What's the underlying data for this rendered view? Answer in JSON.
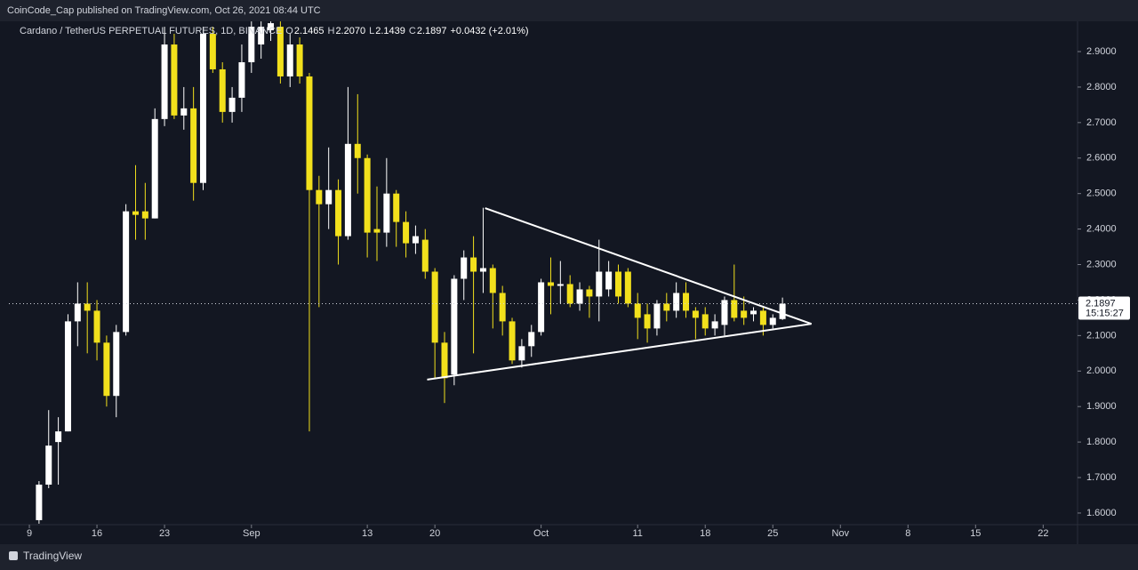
{
  "publisher": "CoinCode_Cap published on TradingView.com, Oct 26, 2021 08:44 UTC",
  "footer": "TradingView",
  "chart_data": {
    "type": "candlestick",
    "title": "Cardano / TetherUS PERPETUAL FUTURES, 1D, BINANCE",
    "ohlc_legend": [
      {
        "label": "O",
        "value": "2.1465"
      },
      {
        "label": "H",
        "value": "2.2070"
      },
      {
        "label": "L",
        "value": "2.1439"
      },
      {
        "label": "C",
        "value": "2.1897"
      }
    ],
    "change": "+0.0432 (+2.01%)",
    "up_color": "#ffffff",
    "down_color": "#f2e01c",
    "x": [
      1,
      2,
      3,
      4,
      5,
      6,
      7,
      8,
      9,
      10,
      11,
      12,
      13,
      14,
      15,
      16,
      17,
      18,
      19,
      20,
      21,
      22,
      23,
      24,
      25,
      26,
      27,
      28,
      29,
      30,
      31,
      32,
      33,
      34,
      35,
      36,
      37,
      38,
      39,
      40,
      41,
      42,
      43,
      44,
      45,
      46,
      47,
      48,
      49,
      50,
      51,
      52,
      53,
      54,
      55,
      56,
      57,
      58,
      59,
      60,
      61,
      62,
      63,
      64,
      65,
      66,
      67,
      68,
      69,
      70,
      71,
      72,
      73,
      74,
      75,
      76,
      77,
      78
    ],
    "open": [
      1.58,
      1.68,
      1.8,
      1.83,
      2.14,
      2.19,
      2.17,
      2.08,
      1.93,
      2.11,
      2.45,
      2.45,
      2.43,
      2.71,
      2.92,
      2.72,
      2.74,
      2.53,
      2.95,
      2.85,
      2.73,
      2.77,
      2.87,
      2.92,
      2.96,
      2.97,
      2.83,
      2.92,
      2.83,
      2.51,
      2.47,
      2.51,
      2.38,
      2.64,
      2.6,
      2.4,
      2.39,
      2.5,
      2.42,
      2.36,
      2.37,
      2.28,
      2.08,
      1.99,
      2.26,
      2.32,
      2.28,
      2.29,
      2.22,
      2.14,
      2.03,
      2.07,
      2.11,
      2.25,
      2.24,
      2.245,
      2.19,
      2.23,
      2.21,
      2.23,
      2.28,
      2.28,
      2.19,
      2.16,
      2.12,
      2.19,
      2.17,
      2.22,
      2.17,
      2.16,
      2.12,
      2.13,
      2.2,
      2.17,
      2.16,
      2.17,
      2.13,
      2.1465
    ],
    "high": [
      1.69,
      1.89,
      1.87,
      2.16,
      2.25,
      2.25,
      2.2,
      2.1,
      2.13,
      2.47,
      2.58,
      2.53,
      2.74,
      2.97,
      2.95,
      2.8,
      2.8,
      2.97,
      2.97,
      2.87,
      2.8,
      2.92,
      2.985,
      2.985,
      2.985,
      2.985,
      2.95,
      2.94,
      2.84,
      2.55,
      2.63,
      2.54,
      2.8,
      2.78,
      2.61,
      2.52,
      2.6,
      2.51,
      2.45,
      2.41,
      2.4,
      2.29,
      2.11,
      2.27,
      2.34,
      2.38,
      2.46,
      2.3,
      2.24,
      2.15,
      2.09,
      2.13,
      2.26,
      2.32,
      2.31,
      2.27,
      2.25,
      2.24,
      2.37,
      2.31,
      2.3,
      2.29,
      2.22,
      2.19,
      2.2,
      2.22,
      2.25,
      2.25,
      2.18,
      2.18,
      2.16,
      2.21,
      2.3,
      2.21,
      2.18,
      2.18,
      2.16,
      2.207
    ],
    "low": [
      1.57,
      1.67,
      1.68,
      1.83,
      2.07,
      2.05,
      2.03,
      1.9,
      1.87,
      2.1,
      2.37,
      2.37,
      2.43,
      2.69,
      2.71,
      2.68,
      2.48,
      2.51,
      2.84,
      2.7,
      2.7,
      2.73,
      2.84,
      2.88,
      2.93,
      2.81,
      2.8,
      2.81,
      1.83,
      2.18,
      2.4,
      2.3,
      2.37,
      2.5,
      2.32,
      2.31,
      2.35,
      2.35,
      2.32,
      2.33,
      2.26,
      1.98,
      1.91,
      1.96,
      2.2,
      2.05,
      2.22,
      2.12,
      2.1,
      2.02,
      2.01,
      2.04,
      2.1,
      2.16,
      2.19,
      2.18,
      2.17,
      2.15,
      2.14,
      2.21,
      2.19,
      2.18,
      2.09,
      2.08,
      2.1,
      2.14,
      2.15,
      2.15,
      2.09,
      2.1,
      2.1,
      2.1,
      2.14,
      2.13,
      2.14,
      2.1,
      2.12,
      2.1439
    ],
    "close": [
      1.68,
      1.79,
      1.83,
      2.14,
      2.19,
      2.17,
      2.08,
      1.93,
      2.11,
      2.45,
      2.44,
      2.43,
      2.71,
      2.92,
      2.72,
      2.74,
      2.53,
      2.95,
      2.85,
      2.73,
      2.77,
      2.87,
      2.97,
      2.97,
      2.98,
      2.83,
      2.92,
      2.83,
      2.51,
      2.47,
      2.51,
      2.38,
      2.64,
      2.6,
      2.39,
      2.39,
      2.5,
      2.42,
      2.36,
      2.38,
      2.28,
      2.08,
      1.98,
      2.26,
      2.32,
      2.28,
      2.29,
      2.22,
      2.14,
      2.03,
      2.07,
      2.11,
      2.25,
      2.24,
      2.245,
      2.19,
      2.23,
      2.21,
      2.28,
      2.28,
      2.21,
      2.19,
      2.15,
      2.12,
      2.19,
      2.17,
      2.22,
      2.17,
      2.15,
      2.12,
      2.14,
      2.2,
      2.15,
      2.15,
      2.17,
      2.13,
      2.15,
      2.1897
    ],
    "trendlines": [
      {
        "x": [
          47.2,
          81.0
        ],
        "y": [
          2.459,
          2.133
        ]
      },
      {
        "x": [
          41.2,
          81.0
        ],
        "y": [
          1.976,
          2.133
        ]
      }
    ],
    "last_price": {
      "value": 2.1897,
      "countdown": "15:15:27"
    },
    "xlim": [
      -2.12,
      108.56
    ],
    "xticks": [
      {
        "value": 0,
        "label": "9"
      },
      {
        "value": 7,
        "label": "16"
      },
      {
        "value": 14,
        "label": "23"
      },
      {
        "value": 23,
        "label": "Sep"
      },
      {
        "value": 35,
        "label": "13"
      },
      {
        "value": 42,
        "label": "20"
      },
      {
        "value": 53,
        "label": "Oct"
      },
      {
        "value": 63,
        "label": "11"
      },
      {
        "value": 70,
        "label": "18"
      },
      {
        "value": 77,
        "label": "25"
      },
      {
        "value": 84,
        "label": "Nov"
      },
      {
        "value": 91,
        "label": "8"
      },
      {
        "value": 98,
        "label": "15"
      },
      {
        "value": 105,
        "label": "22"
      }
    ],
    "ylim": [
      1.5673,
      2.9852
    ],
    "yticks": [
      {
        "value": 1.6,
        "label": "1.6000"
      },
      {
        "value": 1.7,
        "label": "1.7000"
      },
      {
        "value": 1.8,
        "label": "1.8000"
      },
      {
        "value": 1.9,
        "label": "1.9000"
      },
      {
        "value": 2.0,
        "label": "2.0000"
      },
      {
        "value": 2.1,
        "label": "2.1000"
      },
      {
        "value": 2.2,
        "label": "2.2000"
      },
      {
        "value": 2.3,
        "label": "2.3000"
      },
      {
        "value": 2.4,
        "label": "2.4000"
      },
      {
        "value": 2.5,
        "label": "2.5000"
      },
      {
        "value": 2.6,
        "label": "2.6000"
      },
      {
        "value": 2.7,
        "label": "2.7000"
      },
      {
        "value": 2.8,
        "label": "2.8000"
      },
      {
        "value": 2.9,
        "label": "2.9000"
      }
    ],
    "grid": false
  }
}
